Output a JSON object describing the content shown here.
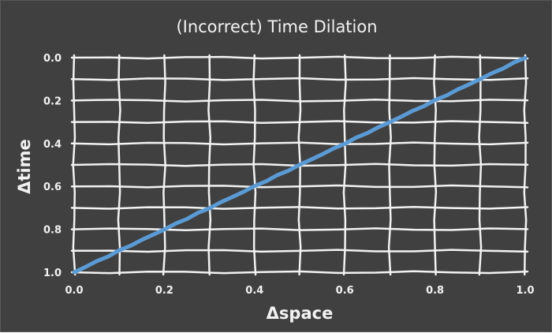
{
  "chart_data": {
    "type": "line",
    "title": "(Incorrect) Time Dilation",
    "xlabel": "Δspace",
    "ylabel": "Δtime",
    "xlim": [
      0,
      1
    ],
    "ylim": [
      0,
      1
    ],
    "y_axis_reversed": true,
    "grid": true,
    "x_ticks": [
      0.0,
      0.1,
      0.2,
      0.3,
      0.4,
      0.5,
      0.6,
      0.7,
      0.8,
      0.9,
      1.0
    ],
    "x_tick_labels": [
      "0.0",
      "0.2",
      "0.4",
      "0.6",
      "0.8",
      "1.0"
    ],
    "y_ticks": [
      0.0,
      0.1,
      0.2,
      0.3,
      0.4,
      0.5,
      0.6,
      0.7,
      0.8,
      0.9,
      1.0
    ],
    "y_tick_labels": [
      "0.0",
      "0.2",
      "0.4",
      "0.6",
      "0.8",
      "1.0"
    ],
    "series": [
      {
        "x": [
          0.0,
          1.0
        ],
        "y": [
          1.0,
          0.0
        ],
        "color": "#5b9bd5"
      }
    ],
    "colors": {
      "background": "#404040",
      "text": "#f2f2f2",
      "grid": "#f2f2f2",
      "series": "#5b9bd5"
    }
  }
}
